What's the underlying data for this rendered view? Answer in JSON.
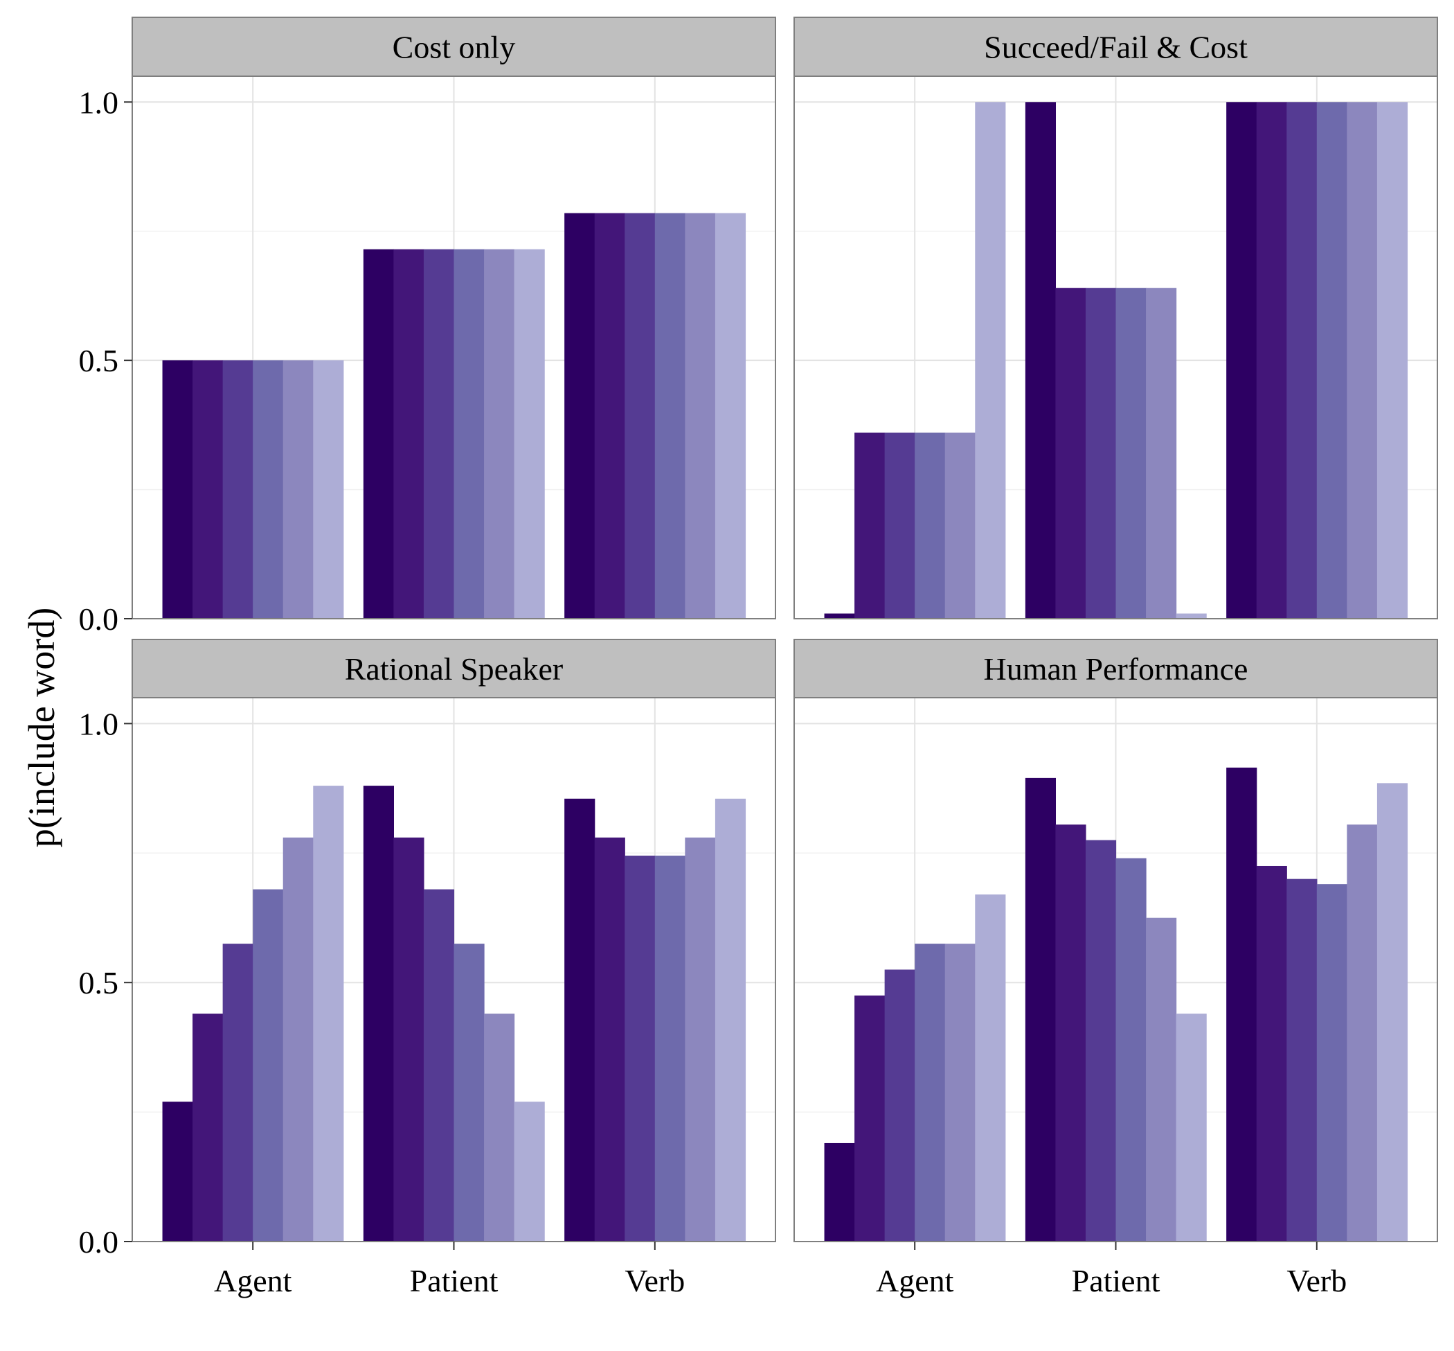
{
  "chart_data": {
    "type": "bar",
    "layout": "facet-grid 2x2",
    "ylabel": "p(include word)",
    "xlabel": "",
    "ylim": [
      0,
      1.05
    ],
    "yticks": [
      0.0,
      0.5,
      1.0
    ],
    "ytick_labels": [
      "0.0",
      "0.5",
      "1.0"
    ],
    "categories": [
      "Agent",
      "Patient",
      "Verb"
    ],
    "grid": true,
    "legend": "none",
    "series_colors": [
      "#2d0063",
      "#431679",
      "#553b93",
      "#6e6aac",
      "#8c87be",
      "#adadd6"
    ],
    "panels": [
      {
        "title": "Cost only",
        "series": [
          {
            "values": [
              0.5,
              0.715,
              0.785
            ]
          },
          {
            "values": [
              0.5,
              0.715,
              0.785
            ]
          },
          {
            "values": [
              0.5,
              0.715,
              0.785
            ]
          },
          {
            "values": [
              0.5,
              0.715,
              0.785
            ]
          },
          {
            "values": [
              0.5,
              0.715,
              0.785
            ]
          },
          {
            "values": [
              0.5,
              0.715,
              0.785
            ]
          }
        ]
      },
      {
        "title": "Succeed/Fail & Cost",
        "series": [
          {
            "values": [
              0.01,
              1.0,
              1.0
            ]
          },
          {
            "values": [
              0.36,
              0.64,
              1.0
            ]
          },
          {
            "values": [
              0.36,
              0.64,
              1.0
            ]
          },
          {
            "values": [
              0.36,
              0.64,
              1.0
            ]
          },
          {
            "values": [
              0.36,
              0.64,
              1.0
            ]
          },
          {
            "values": [
              1.0,
              0.01,
              1.0
            ]
          }
        ]
      },
      {
        "title": "Rational Speaker",
        "series": [
          {
            "values": [
              0.27,
              0.88,
              0.855
            ]
          },
          {
            "values": [
              0.44,
              0.78,
              0.78
            ]
          },
          {
            "values": [
              0.575,
              0.68,
              0.745
            ]
          },
          {
            "values": [
              0.68,
              0.575,
              0.745
            ]
          },
          {
            "values": [
              0.78,
              0.44,
              0.78
            ]
          },
          {
            "values": [
              0.88,
              0.27,
              0.855
            ]
          }
        ]
      },
      {
        "title": "Human Performance",
        "series": [
          {
            "values": [
              0.19,
              0.895,
              0.915
            ]
          },
          {
            "values": [
              0.475,
              0.805,
              0.725
            ]
          },
          {
            "values": [
              0.525,
              0.775,
              0.7
            ]
          },
          {
            "values": [
              0.575,
              0.74,
              0.69
            ]
          },
          {
            "values": [
              0.575,
              0.625,
              0.805
            ]
          },
          {
            "values": [
              0.67,
              0.44,
              0.885
            ]
          }
        ]
      }
    ]
  }
}
